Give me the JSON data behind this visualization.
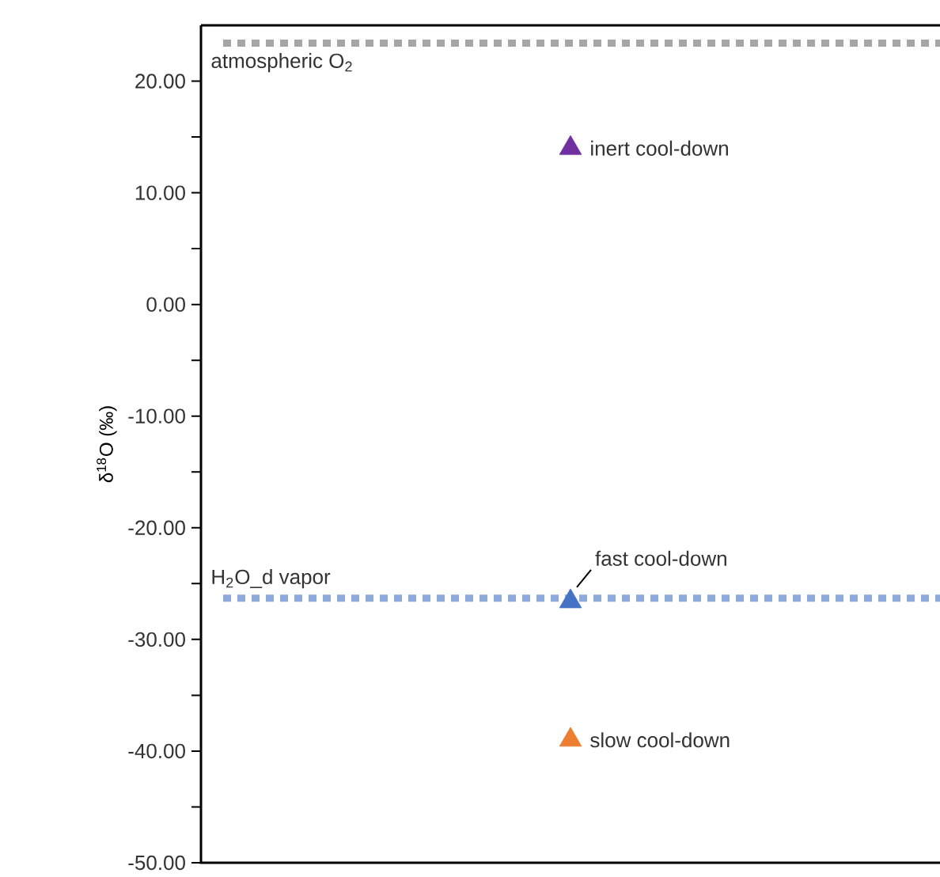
{
  "chart_data": {
    "type": "scatter",
    "ylabel": "δ$^{18}$O (‰)",
    "categories": [
      null
    ],
    "marker": "triangle",
    "series": [
      {
        "name": "inert cool-down",
        "color": "#7030a0",
        "values": [
          14
        ]
      },
      {
        "name": "fast cool-down",
        "color": "#4472c4",
        "values": [
          -26.6
        ]
      },
      {
        "name": "slow cool-down",
        "color": "#ed7d31",
        "values": [
          -39
        ]
      }
    ],
    "ref_lines": [
      {
        "axis": "y",
        "value": 23.4,
        "label": "atmospheric O$_{2}$",
        "color": "#a6a6a6",
        "line_style": "dotted"
      },
      {
        "axis": "y",
        "value": -26.3,
        "label": "H$_{2}$O_d vapor",
        "color": "#8eaadb",
        "line_style": "dotted"
      }
    ],
    "ylim": [
      -50,
      25
    ],
    "yticks": [
      {
        "value": -50,
        "label": "-50.00"
      },
      {
        "value": -40,
        "label": "-40.00"
      },
      {
        "value": -30,
        "label": "-30.00"
      },
      {
        "value": -20,
        "label": "-20.00"
      },
      {
        "value": -10,
        "label": "-10.00"
      },
      {
        "value": 0,
        "label": "0.00"
      },
      {
        "value": 10,
        "label": "10.00"
      },
      {
        "value": 20,
        "label": "20.00"
      }
    ],
    "grid": false
  }
}
